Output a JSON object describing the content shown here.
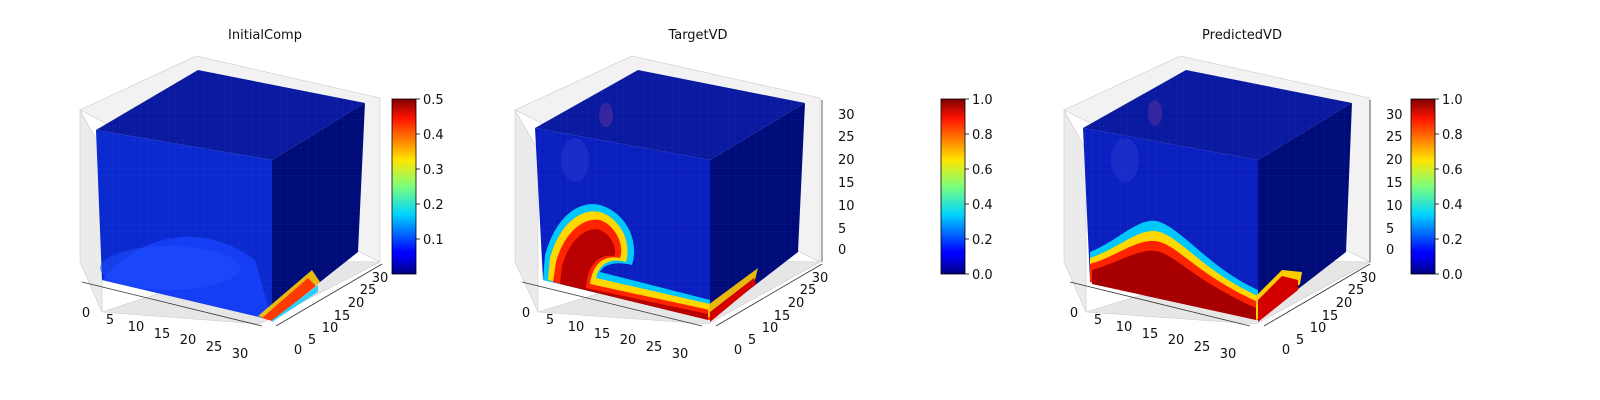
{
  "chart_data": [
    {
      "type": "voxel-3d",
      "title": "InitialComp",
      "x_ticks": [
        "0",
        "5",
        "10",
        "15",
        "20",
        "25",
        "30"
      ],
      "y_ticks": [
        "0",
        "5",
        "10",
        "15",
        "20",
        "25",
        "30"
      ],
      "z_ticks": [],
      "colormap": "jet",
      "colorbar": {
        "min": 0.0,
        "max": 0.5,
        "ticks": [
          "0.1",
          "0.2",
          "0.3",
          "0.4",
          "0.5"
        ],
        "tick_values": [
          0.1,
          0.2,
          0.3,
          0.4,
          0.5
        ]
      },
      "grid": true
    },
    {
      "type": "voxel-3d",
      "title": "TargetVD",
      "x_ticks": [
        "0",
        "5",
        "10",
        "15",
        "20",
        "25",
        "30"
      ],
      "y_ticks": [
        "0",
        "5",
        "10",
        "15",
        "20",
        "25",
        "30"
      ],
      "z_ticks": [
        "0",
        "5",
        "10",
        "15",
        "20",
        "25",
        "30"
      ],
      "colormap": "jet",
      "colorbar": {
        "min": 0.0,
        "max": 1.0,
        "ticks": [
          "0.0",
          "0.2",
          "0.4",
          "0.6",
          "0.8",
          "1.0"
        ],
        "tick_values": [
          0.0,
          0.2,
          0.4,
          0.6,
          0.8,
          1.0
        ]
      },
      "grid": true
    },
    {
      "type": "voxel-3d",
      "title": "PredictedVD",
      "x_ticks": [
        "0",
        "5",
        "10",
        "15",
        "20",
        "25",
        "30"
      ],
      "y_ticks": [
        "0",
        "5",
        "10",
        "15",
        "20",
        "25",
        "30"
      ],
      "z_ticks": [
        "0",
        "5",
        "10",
        "15",
        "20",
        "25",
        "30"
      ],
      "colormap": "jet",
      "colorbar": {
        "min": 0.0,
        "max": 1.0,
        "ticks": [
          "0.0",
          "0.2",
          "0.4",
          "0.6",
          "0.8",
          "1.0"
        ],
        "tick_values": [
          0.0,
          0.2,
          0.4,
          0.6,
          0.8,
          1.0
        ]
      },
      "grid": true
    }
  ]
}
